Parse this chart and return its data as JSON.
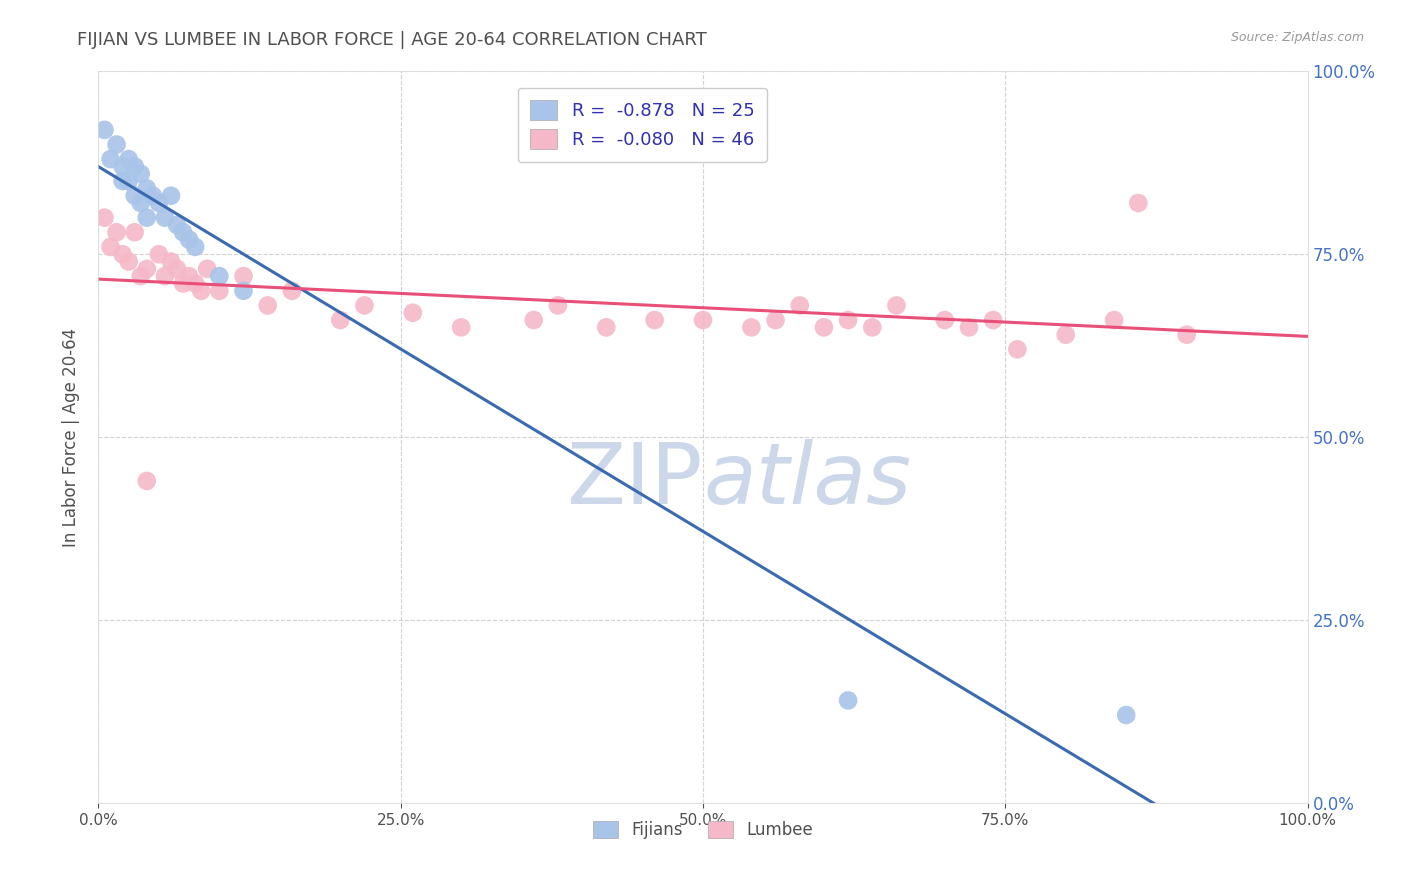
{
  "title": "FIJIAN VS LUMBEE IN LABOR FORCE | AGE 20-64 CORRELATION CHART",
  "source_text": "Source: ZipAtlas.com",
  "ylabel": "In Labor Force | Age 20-64",
  "fijian_R": -0.878,
  "fijian_N": 25,
  "lumbee_R": -0.08,
  "lumbee_N": 46,
  "fijian_color": "#a8c4e8",
  "lumbee_color": "#f5b8c8",
  "fijian_line_color": "#3a6ab0",
  "lumbee_line_color": "#e8507a",
  "background_color": "#ffffff",
  "grid_color": "#c8c8c8",
  "title_color": "#505050",
  "axis_label_color": "#505050",
  "left_tick_color": "#505050",
  "right_tick_color": "#4472c4",
  "bottom_tick_color": "#505050",
  "legend_text_color": "#3030b0",
  "watermark_color": "#ccd8ea",
  "xlim": [
    0,
    1.0
  ],
  "ylim": [
    0,
    1.0
  ],
  "fijian_x": [
    0.005,
    0.01,
    0.015,
    0.02,
    0.02,
    0.025,
    0.025,
    0.03,
    0.03,
    0.035,
    0.035,
    0.04,
    0.04,
    0.045,
    0.05,
    0.055,
    0.06,
    0.065,
    0.07,
    0.075,
    0.08,
    0.1,
    0.12,
    0.62,
    0.85
  ],
  "fijian_y": [
    0.92,
    0.88,
    0.9,
    0.87,
    0.85,
    0.88,
    0.85,
    0.87,
    0.83,
    0.86,
    0.82,
    0.84,
    0.8,
    0.83,
    0.82,
    0.8,
    0.83,
    0.79,
    0.78,
    0.77,
    0.76,
    0.72,
    0.7,
    0.14,
    0.12
  ],
  "lumbee_x": [
    0.005,
    0.01,
    0.015,
    0.02,
    0.025,
    0.03,
    0.035,
    0.04,
    0.04,
    0.05,
    0.055,
    0.06,
    0.065,
    0.07,
    0.075,
    0.08,
    0.085,
    0.09,
    0.1,
    0.12,
    0.14,
    0.16,
    0.2,
    0.22,
    0.26,
    0.3,
    0.36,
    0.38,
    0.42,
    0.46,
    0.5,
    0.54,
    0.56,
    0.58,
    0.6,
    0.62,
    0.64,
    0.66,
    0.7,
    0.72,
    0.74,
    0.76,
    0.8,
    0.84,
    0.86,
    0.9
  ],
  "lumbee_y": [
    0.8,
    0.76,
    0.78,
    0.75,
    0.74,
    0.78,
    0.72,
    0.73,
    0.44,
    0.75,
    0.72,
    0.74,
    0.73,
    0.71,
    0.72,
    0.71,
    0.7,
    0.73,
    0.7,
    0.72,
    0.68,
    0.7,
    0.66,
    0.68,
    0.67,
    0.65,
    0.66,
    0.68,
    0.65,
    0.66,
    0.66,
    0.65,
    0.66,
    0.68,
    0.65,
    0.66,
    0.65,
    0.68,
    0.66,
    0.65,
    0.66,
    0.62,
    0.64,
    0.66,
    0.82,
    0.64
  ],
  "xticks": [
    0.0,
    0.25,
    0.5,
    0.75,
    1.0
  ],
  "yticks": [
    0.0,
    0.25,
    0.5,
    0.75,
    1.0
  ]
}
